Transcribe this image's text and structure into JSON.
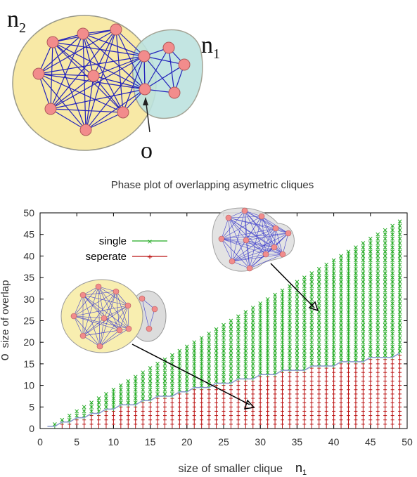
{
  "diagram": {
    "label_n2": "n",
    "label_n2_sub": "2",
    "label_n1": "n",
    "label_n1_sub": "1",
    "label_o": "o",
    "colors": {
      "big_blob": "#f8e9a6",
      "small_blob": "#bde3df",
      "blob_stroke": "#9a9a8a",
      "node": "#f28c8c",
      "node_stroke": "#b05a5a",
      "edge": "#2222bb"
    }
  },
  "chart_data": {
    "type": "scatter",
    "title": "Phase plot of overlapping asymetric cliques",
    "xlabel": "size of smaller clique",
    "xlabel_symbol": "n",
    "xlabel_symbol_sub": "1",
    "ylabel": "size of overlap",
    "ylabel_symbol": "o",
    "xlim": [
      0,
      50
    ],
    "ylim": [
      0,
      50
    ],
    "xticks": [
      0,
      5,
      10,
      15,
      20,
      25,
      30,
      35,
      40,
      45,
      50
    ],
    "yticks": [
      0,
      5,
      10,
      15,
      20,
      25,
      30,
      35,
      40,
      45,
      50
    ],
    "legend_position": "top-left",
    "series": [
      {
        "name": "single",
        "marker": "x",
        "color": "#22aa22",
        "description_range": "overlap from boundary up to n1-1"
      },
      {
        "name": "seperate",
        "marker": "+",
        "color": "#bb1111",
        "description_range": "overlap from 0 up to boundary"
      }
    ],
    "x": [
      1,
      2,
      3,
      4,
      5,
      6,
      7,
      8,
      9,
      10,
      11,
      12,
      13,
      14,
      15,
      16,
      17,
      18,
      19,
      20,
      21,
      22,
      23,
      24,
      25,
      26,
      27,
      28,
      29,
      30,
      31,
      32,
      33,
      34,
      35,
      36,
      37,
      38,
      39,
      40,
      41,
      42,
      43,
      44,
      45,
      46,
      47,
      48,
      49
    ],
    "boundary": [
      0,
      0,
      1,
      1,
      2,
      2,
      3,
      3,
      4,
      4,
      5,
      5,
      5,
      6,
      6,
      7,
      7,
      7,
      8,
      8,
      9,
      9,
      9,
      10,
      10,
      10,
      11,
      11,
      11,
      12,
      12,
      12,
      13,
      13,
      13,
      13,
      14,
      14,
      14,
      14,
      15,
      15,
      15,
      15,
      16,
      16,
      16,
      16,
      17
    ],
    "boundary_color": "#8899cc"
  }
}
